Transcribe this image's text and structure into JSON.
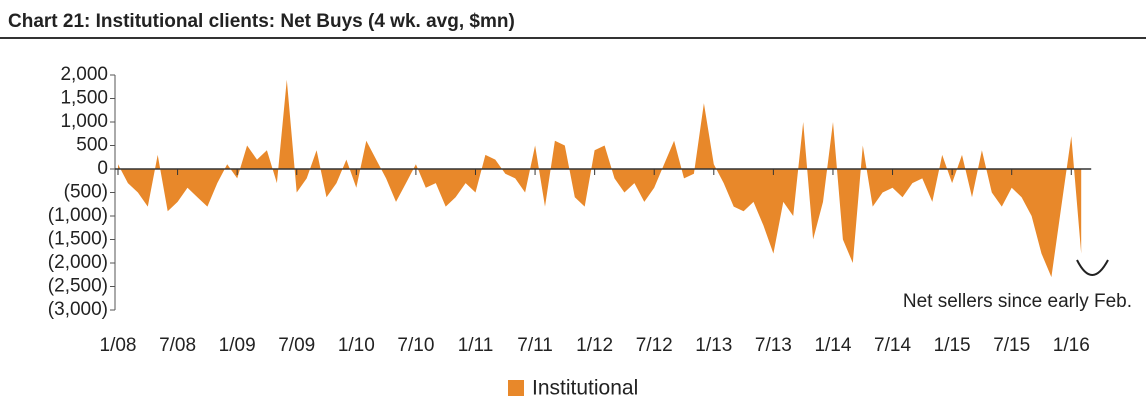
{
  "chart_data": {
    "type": "area",
    "title": "Chart 21: Institutional clients: Net Buys (4 wk. avg, $mn)",
    "annotation": "Net sellers since early Feb.",
    "categories": [
      "1/08",
      null,
      null,
      null,
      null,
      null,
      "7/08",
      null,
      null,
      null,
      null,
      null,
      "1/09",
      null,
      null,
      null,
      null,
      null,
      "7/09",
      null,
      null,
      null,
      null,
      null,
      "1/10",
      null,
      null,
      null,
      null,
      null,
      "7/10",
      null,
      null,
      null,
      null,
      null,
      "1/11",
      null,
      null,
      null,
      null,
      null,
      "7/11",
      null,
      null,
      null,
      null,
      null,
      "1/12",
      null,
      null,
      null,
      null,
      null,
      "7/12",
      null,
      null,
      null,
      null,
      null,
      "1/13",
      null,
      null,
      null,
      null,
      null,
      "7/13",
      null,
      null,
      null,
      null,
      null,
      "1/14",
      null,
      null,
      null,
      null,
      null,
      "7/14",
      null,
      null,
      null,
      null,
      null,
      "1/15",
      null,
      null,
      null,
      null,
      null,
      "7/15",
      null,
      null,
      null,
      null,
      null,
      "1/16",
      null
    ],
    "series": [
      {
        "name": "Institutional",
        "color": "#e8882a",
        "values": [
          100,
          -300,
          -500,
          -800,
          300,
          -900,
          -700,
          -400,
          -600,
          -800,
          -300,
          100,
          -200,
          500,
          200,
          400,
          -300,
          1900,
          -500,
          -200,
          400,
          -600,
          -300,
          200,
          -400,
          600,
          200,
          -200,
          -700,
          -300,
          100,
          -400,
          -300,
          -800,
          -600,
          -300,
          -500,
          300,
          200,
          -100,
          -200,
          -500,
          500,
          -800,
          600,
          500,
          -600,
          -800,
          400,
          500,
          -200,
          -500,
          -300,
          -700,
          -400,
          100,
          600,
          -200,
          -100,
          1400,
          100,
          -300,
          -800,
          -900,
          -700,
          -1200,
          -1800,
          -700,
          -1000,
          1000,
          -1500,
          -700,
          1000,
          -1500,
          -2000,
          500,
          -800,
          -500,
          -400,
          -600,
          -300,
          -200,
          -700,
          300,
          -300,
          300,
          -600,
          400,
          -500,
          -800,
          -400,
          -600,
          -1000,
          -1800,
          -2300,
          -800,
          700,
          -1800
        ]
      }
    ],
    "ylim": [
      -3000,
      2000
    ],
    "yticks": [
      {
        "value": 2000,
        "label": "2,000"
      },
      {
        "value": 1500,
        "label": "1,500"
      },
      {
        "value": 1000,
        "label": "1,000"
      },
      500,
      0,
      {
        "value": -500,
        "label": "(500)"
      },
      {
        "value": -1000,
        "label": "(1,000)"
      },
      {
        "value": -1500,
        "label": "(1,500)"
      },
      {
        "value": -2000,
        "label": "(2,000)"
      },
      {
        "value": -2500,
        "label": "(2,500)"
      },
      {
        "value": -3000,
        "label": "(3,000)"
      }
    ],
    "legend": "bottom"
  }
}
